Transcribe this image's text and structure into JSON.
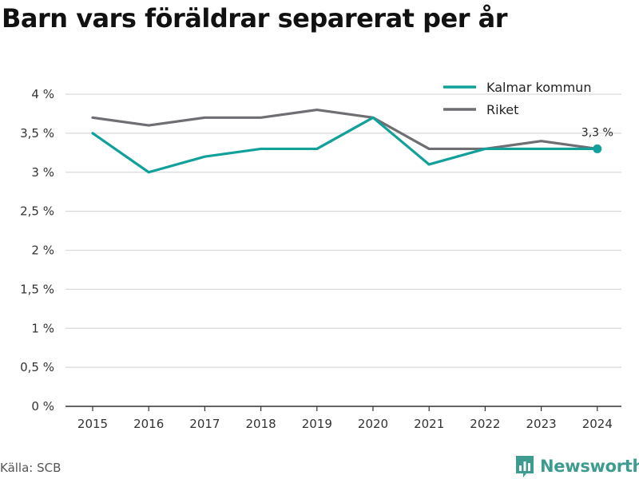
{
  "title": "Barn vars föräldrar separerat per år",
  "source": "Källa: SCB",
  "brand": {
    "name": "Newsworthy",
    "icon": "newsworthy-logo-icon",
    "color": "#3d9b8f"
  },
  "chart_data": {
    "type": "line",
    "x": [
      2015,
      2016,
      2017,
      2018,
      2019,
      2020,
      2021,
      2022,
      2023,
      2024
    ],
    "x_tick_labels": [
      "2015",
      "2016",
      "2017",
      "2018",
      "2019",
      "2020",
      "2021",
      "2022",
      "2023",
      "2024"
    ],
    "ylim": [
      0,
      4
    ],
    "y_ticks": [
      0,
      0.5,
      1,
      1.5,
      2,
      2.5,
      3,
      3.5,
      4
    ],
    "y_tick_labels": [
      "0 %",
      "0,5 %",
      "1 %",
      "1,5 %",
      "2 %",
      "2,5 %",
      "3 %",
      "3,5 %",
      "4 %"
    ],
    "grid": true,
    "legend_position": "top-right",
    "series": [
      {
        "name": "Kalmar kommun",
        "color": "#11a19a",
        "values": [
          3.5,
          3.0,
          3.2,
          3.3,
          3.3,
          3.7,
          3.1,
          3.3,
          3.3,
          3.3
        ]
      },
      {
        "name": "Riket",
        "color": "#6e6e73",
        "values": [
          3.7,
          3.6,
          3.7,
          3.7,
          3.8,
          3.7,
          3.3,
          3.3,
          3.4,
          3.3
        ]
      }
    ],
    "annotations": [
      {
        "series": "Kalmar kommun",
        "x": 2024,
        "y": 3.3,
        "text": "3,3 %"
      }
    ]
  }
}
